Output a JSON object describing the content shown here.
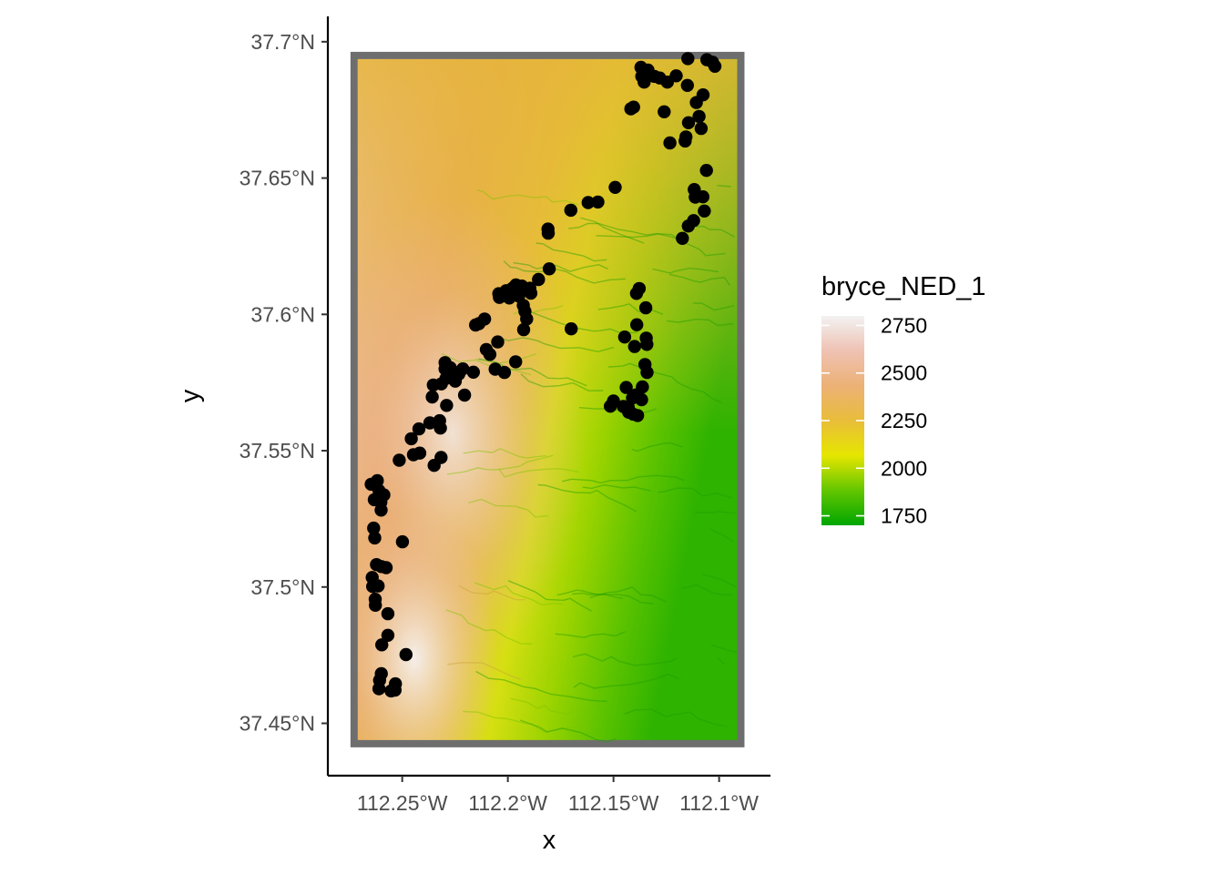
{
  "chart_data": {
    "type": "scatter",
    "subtype": "raster-map-with-points",
    "title": "",
    "xlabel": "x",
    "ylabel": "y",
    "x_ticks": [
      {
        "value": -112.25,
        "label": "112.25°W"
      },
      {
        "value": -112.2,
        "label": "112.2°W"
      },
      {
        "value": -112.15,
        "label": "112.15°W"
      },
      {
        "value": -112.1,
        "label": "112.1°W"
      }
    ],
    "y_ticks": [
      {
        "value": 37.45,
        "label": "37.45°N"
      },
      {
        "value": 37.5,
        "label": "37.5°N"
      },
      {
        "value": 37.55,
        "label": "37.55°N"
      },
      {
        "value": 37.6,
        "label": "37.6°N"
      },
      {
        "value": 37.65,
        "label": "37.65°N"
      },
      {
        "value": 37.7,
        "label": "37.7°N"
      }
    ],
    "xlim": [
      -112.2852,
      -112.0757
    ],
    "ylim": [
      37.4308,
      37.7093
    ],
    "grid": false,
    "raster": {
      "name": "bryce_NED_1",
      "extent": {
        "xmin": -112.2745,
        "xmax": -112.088,
        "ymin": 37.4412,
        "ymax": 37.6963
      },
      "description": "elevation raster"
    },
    "legend": {
      "title": "bryce_NED_1",
      "placement": "right",
      "range": [
        1700,
        2800
      ],
      "breaks": [
        {
          "value": 2750,
          "label": "2750"
        },
        {
          "value": 2500,
          "label": "2500"
        },
        {
          "value": 2250,
          "label": "2250"
        },
        {
          "value": 2000,
          "label": "2000"
        },
        {
          "value": 1750,
          "label": "1750"
        }
      ],
      "colors": [
        "#00a600",
        "#63c600",
        "#e6e600",
        "#e9bd3a",
        "#ecb176",
        "#efc2b3",
        "#f2f2f2"
      ]
    },
    "points": [
      [
        -112.2647,
        37.5377
      ],
      [
        -112.2618,
        37.539
      ],
      [
        -112.261,
        37.5354
      ],
      [
        -112.2587,
        37.5338
      ],
      [
        -112.2601,
        37.5311
      ],
      [
        -112.2632,
        37.532
      ],
      [
        -112.26,
        37.5282
      ],
      [
        -112.2635,
        37.5216
      ],
      [
        -112.263,
        37.518
      ],
      [
        -112.2622,
        37.5082
      ],
      [
        -112.2599,
        37.5075
      ],
      [
        -112.2576,
        37.5071
      ],
      [
        -112.2642,
        37.5035
      ],
      [
        -112.264,
        37.5002
      ],
      [
        -112.2614,
        37.5004
      ],
      [
        -112.2628,
        37.4955
      ],
      [
        -112.2627,
        37.4933
      ],
      [
        -112.2568,
        37.4902
      ],
      [
        -112.2568,
        37.4823
      ],
      [
        -112.2597,
        37.4788
      ],
      [
        -112.2599,
        37.4682
      ],
      [
        -112.2607,
        37.4658
      ],
      [
        -112.261,
        37.4627
      ],
      [
        -112.2532,
        37.4645
      ],
      [
        -112.2534,
        37.4622
      ],
      [
        -112.2553,
        37.4619
      ],
      [
        -112.2482,
        37.4752
      ],
      [
        -112.2499,
        37.5166
      ],
      [
        -112.2514,
        37.5465
      ],
      [
        -112.2457,
        37.5544
      ],
      [
        -112.2421,
        37.558
      ],
      [
        -112.2447,
        37.5485
      ],
      [
        -112.2417,
        37.5491
      ],
      [
        -112.2369,
        37.5602
      ],
      [
        -112.2358,
        37.5697
      ],
      [
        -112.2353,
        37.5741
      ],
      [
        -112.2349,
        37.5446
      ],
      [
        -112.2316,
        37.5475
      ],
      [
        -112.2319,
        37.5583
      ],
      [
        -112.2323,
        37.561
      ],
      [
        -112.2315,
        37.5745
      ],
      [
        -112.2297,
        37.5823
      ],
      [
        -112.2297,
        37.58
      ],
      [
        -112.2293,
        37.5765
      ],
      [
        -112.229,
        37.5666
      ],
      [
        -112.2272,
        37.5804
      ],
      [
        -112.2263,
        37.5772
      ],
      [
        -112.2249,
        37.5755
      ],
      [
        -112.2232,
        37.5781
      ],
      [
        -112.2213,
        37.58
      ],
      [
        -112.2205,
        37.5704
      ],
      [
        -112.2163,
        37.5788
      ],
      [
        -112.2153,
        37.5961
      ],
      [
        -112.2137,
        37.5966
      ],
      [
        -112.211,
        37.5983
      ],
      [
        -112.2102,
        37.5871
      ],
      [
        -112.2085,
        37.5853
      ],
      [
        -112.2048,
        37.5899
      ],
      [
        -112.206,
        37.5799
      ],
      [
        -112.2016,
        37.5787
      ],
      [
        -112.2043,
        37.6076
      ],
      [
        -112.204,
        37.6062
      ],
      [
        -112.2008,
        37.6087
      ],
      [
        -112.1993,
        37.606
      ],
      [
        -112.1978,
        37.6096
      ],
      [
        -112.1962,
        37.6108
      ],
      [
        -112.1965,
        37.6077
      ],
      [
        -112.1949,
        37.6067
      ],
      [
        -112.1934,
        37.6104
      ],
      [
        -112.1914,
        37.6089
      ],
      [
        -112.1896,
        37.6096
      ],
      [
        -112.1891,
        37.6078
      ],
      [
        -112.1927,
        37.6033
      ],
      [
        -112.1919,
        37.6011
      ],
      [
        -112.1911,
        37.5983
      ],
      [
        -112.1963,
        37.5826
      ],
      [
        -112.1925,
        37.5944
      ],
      [
        -112.1855,
        37.6128
      ],
      [
        -112.1804,
        37.6167
      ],
      [
        -112.1809,
        37.6298
      ],
      [
        -112.181,
        37.6313
      ],
      [
        -112.17,
        37.5947
      ],
      [
        -112.1702,
        37.6382
      ],
      [
        -112.162,
        37.641
      ],
      [
        -112.1574,
        37.6412
      ],
      [
        -112.1492,
        37.6466
      ],
      [
        -112.15,
        37.5682
      ],
      [
        -112.1515,
        37.5663
      ],
      [
        -112.1453,
        37.5662
      ],
      [
        -112.1447,
        37.5917
      ],
      [
        -112.144,
        37.5732
      ],
      [
        -112.143,
        37.5658
      ],
      [
        -112.1428,
        37.5641
      ],
      [
        -112.141,
        37.5693
      ],
      [
        -112.1407,
        37.5634
      ],
      [
        -112.1393,
        37.5705
      ],
      [
        -112.1386,
        37.5629
      ],
      [
        -112.14,
        37.5882
      ],
      [
        -112.139,
        37.5962
      ],
      [
        -112.1391,
        37.6077
      ],
      [
        -112.1378,
        37.6095
      ],
      [
        -112.1367,
        37.5687
      ],
      [
        -112.1363,
        37.5734
      ],
      [
        -112.1351,
        37.5816
      ],
      [
        -112.1345,
        37.5913
      ],
      [
        -112.1342,
        37.589
      ],
      [
        -112.1341,
        37.5787
      ],
      [
        -112.1347,
        37.6024
      ],
      [
        -112.1418,
        37.6754
      ],
      [
        -112.1405,
        37.676
      ],
      [
        -112.137,
        37.6906
      ],
      [
        -112.1366,
        37.6873
      ],
      [
        -112.1355,
        37.6852
      ],
      [
        -112.1337,
        37.6896
      ],
      [
        -112.1306,
        37.6873
      ],
      [
        -112.1281,
        37.6867
      ],
      [
        -112.1245,
        37.6852
      ],
      [
        -112.1203,
        37.6875
      ],
      [
        -112.126,
        37.6743
      ],
      [
        -112.1233,
        37.6629
      ],
      [
        -112.1157,
        37.6651
      ],
      [
        -112.1161,
        37.6636
      ],
      [
        -112.1148,
        37.6938
      ],
      [
        -112.115,
        37.684
      ],
      [
        -112.1145,
        37.6703
      ],
      [
        -112.1108,
        37.6777
      ],
      [
        -112.1076,
        37.6805
      ],
      [
        -112.1095,
        37.6726
      ],
      [
        -112.1085,
        37.6682
      ],
      [
        -112.1174,
        37.6279
      ],
      [
        -112.1146,
        37.6324
      ],
      [
        -112.1121,
        37.6344
      ],
      [
        -112.1118,
        37.6458
      ],
      [
        -112.1113,
        37.643
      ],
      [
        -112.1077,
        37.6431
      ],
      [
        -112.107,
        37.6379
      ],
      [
        -112.106,
        37.6528
      ],
      [
        -112.1058,
        37.6934
      ],
      [
        -112.1031,
        37.6925
      ],
      [
        -112.102,
        37.691
      ]
    ]
  }
}
